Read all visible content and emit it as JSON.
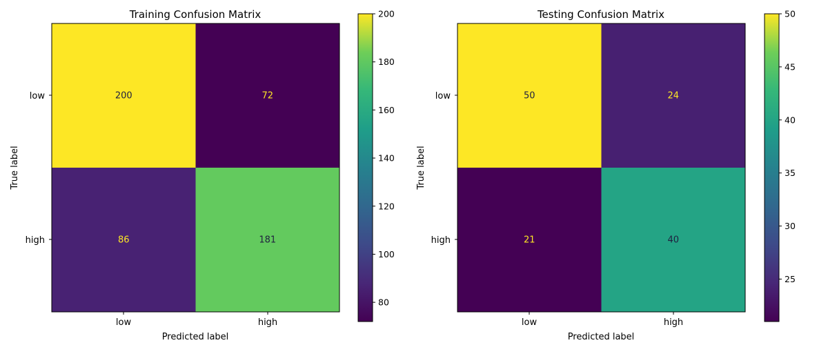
{
  "chart_data": [
    {
      "type": "heatmap",
      "title": "Training Confusion Matrix",
      "xlabel": "Predicted label",
      "ylabel": "True label",
      "x_categories": [
        "low",
        "high"
      ],
      "y_categories": [
        "low",
        "high"
      ],
      "values": [
        [
          200,
          72
        ],
        [
          86,
          181
        ]
      ],
      "colormap": "viridis",
      "colorbar": {
        "range": [
          72,
          200
        ],
        "ticks": [
          80,
          100,
          120,
          140,
          160,
          180,
          200
        ]
      }
    },
    {
      "type": "heatmap",
      "title": "Testing Confusion Matrix",
      "xlabel": "Predicted label",
      "ylabel": "True label",
      "x_categories": [
        "low",
        "high"
      ],
      "y_categories": [
        "low",
        "high"
      ],
      "values": [
        [
          50,
          24
        ],
        [
          21,
          40
        ]
      ],
      "colormap": "viridis",
      "colorbar": {
        "range": [
          21,
          50
        ],
        "ticks": [
          25,
          30,
          35,
          40,
          45,
          50
        ]
      }
    }
  ],
  "colors": {
    "text_on_dark": "#fde725",
    "text_on_light": "#1f1f3f"
  }
}
